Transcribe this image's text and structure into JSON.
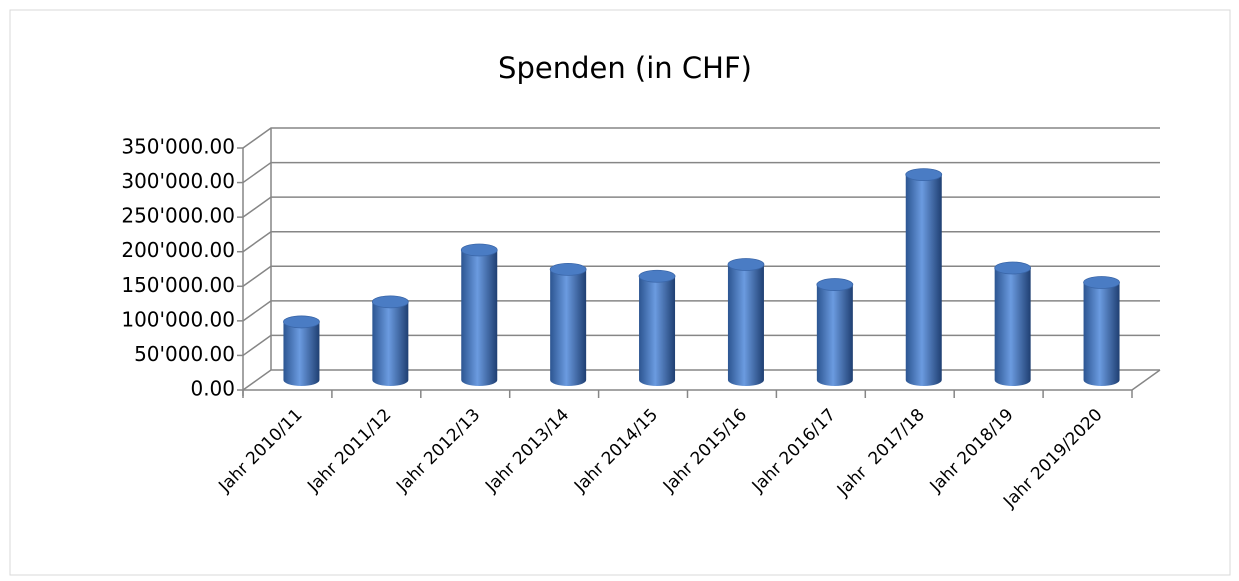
{
  "chart_data": {
    "type": "bar3d",
    "title": "Spenden (in CHF)",
    "categories": [
      "Jahr 2010/11",
      "Jahr 2011/12",
      "Jahr 2012/13",
      "Jahr 2013/14",
      "Jahr 2014/15",
      "Jahr 2015/16",
      "Jahr 2016/17",
      "Jahr  2017/18",
      "Jahr 2018/19",
      "Jahr 2019/2020"
    ],
    "values": [
      84000,
      113000,
      188000,
      160000,
      150000,
      167000,
      138000,
      297000,
      162000,
      141000
    ],
    "color": "#4f81bd",
    "ylim": [
      0,
      350000
    ],
    "yticks": [
      {
        "value": 0,
        "label": "0.00"
      },
      {
        "value": 50000,
        "label": "50'000.00"
      },
      {
        "value": 100000,
        "label": "100'000.00"
      },
      {
        "value": 150000,
        "label": "150'000.00"
      },
      {
        "value": 200000,
        "label": "200'000.00"
      },
      {
        "value": 250000,
        "label": "250'000.00"
      },
      {
        "value": 300000,
        "label": "300'000.00"
      },
      {
        "value": 350000,
        "label": "350'000.00"
      }
    ],
    "grid": true
  }
}
